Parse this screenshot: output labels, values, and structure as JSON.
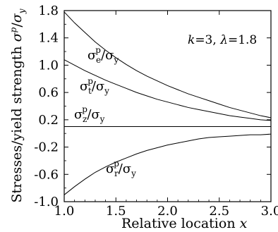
{
  "chart_data": {
    "type": "line",
    "xlabel": "Relative location x",
    "ylabel": "Stresses/yield strength σp/σy",
    "xlim": [
      1.0,
      3.0
    ],
    "ylim": [
      -1.0,
      1.8
    ],
    "xticks": [
      "1.0",
      "1.5",
      "2.0",
      "2.5",
      "3.0"
    ],
    "yticks": [
      "1.8",
      "1.4",
      "1.0",
      "0.6",
      "0.2",
      "-0.2",
      "-0.6",
      "-1.0"
    ],
    "parameters": "k=3, λ=1.8",
    "grid": false,
    "legend": "none (curves labeled inline)",
    "series": [
      {
        "name": "σe^p/σy",
        "x": [
          1.0,
          1.1,
          1.2,
          1.3,
          1.4,
          1.5,
          1.6,
          1.7,
          1.8,
          1.9,
          2.0,
          2.1,
          2.2,
          2.3,
          2.4,
          2.5,
          2.6,
          2.7,
          2.8,
          2.9,
          3.0
        ],
        "y": [
          1.78,
          1.62,
          1.48,
          1.34,
          1.22,
          1.11,
          1.01,
          0.92,
          0.84,
          0.77,
          0.7,
          0.64,
          0.58,
          0.53,
          0.48,
          0.43,
          0.38,
          0.34,
          0.3,
          0.26,
          0.23
        ]
      },
      {
        "name": "σt^p/σy",
        "x": [
          1.0,
          1.1,
          1.2,
          1.3,
          1.4,
          1.5,
          1.6,
          1.7,
          1.8,
          1.9,
          2.0,
          2.1,
          2.2,
          2.3,
          2.4,
          2.5,
          2.6,
          2.7,
          2.8,
          2.9,
          3.0
        ],
        "y": [
          1.08,
          1.0,
          0.92,
          0.85,
          0.78,
          0.72,
          0.66,
          0.6,
          0.55,
          0.5,
          0.46,
          0.42,
          0.38,
          0.35,
          0.32,
          0.29,
          0.26,
          0.24,
          0.22,
          0.2,
          0.19
        ]
      },
      {
        "name": "σz^p/σy",
        "x": [
          1.0,
          3.0
        ],
        "y": [
          0.1,
          0.1
        ]
      },
      {
        "name": "σr^p/σy",
        "x": [
          1.0,
          1.1,
          1.2,
          1.3,
          1.4,
          1.5,
          1.6,
          1.7,
          1.8,
          1.9,
          2.0,
          2.1,
          2.2,
          2.3,
          2.4,
          2.5,
          2.6,
          2.7,
          2.8,
          2.9,
          3.0
        ],
        "y": [
          -0.9,
          -0.78,
          -0.67,
          -0.57,
          -0.49,
          -0.42,
          -0.36,
          -0.3,
          -0.25,
          -0.21,
          -0.17,
          -0.14,
          -0.11,
          -0.08,
          -0.06,
          -0.05,
          -0.04,
          -0.03,
          -0.02,
          -0.02,
          -0.01
        ]
      }
    ]
  }
}
